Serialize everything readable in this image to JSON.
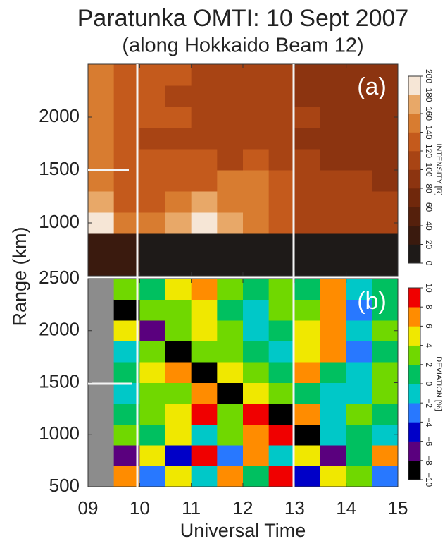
{
  "title": "Paratunka OMTI: 10 Sept 2007",
  "subtitle": "(along Hokkaido Beam 12)",
  "x_label": "Universal Time",
  "y_label": "Range (km)",
  "chart_data": [
    {
      "type": "heatmap",
      "panel_label": "(a)",
      "x": [
        9.25,
        9.75,
        10.25,
        10.75,
        11.25,
        11.75,
        12.25,
        12.75,
        13.25,
        13.75,
        14.25,
        14.75
      ],
      "y": [
        600,
        800,
        1000,
        1200,
        1400,
        1600,
        1800,
        2000,
        2200,
        2400
      ],
      "values": [
        [
          20,
          20,
          15,
          15,
          15,
          15,
          15,
          15,
          15,
          15,
          15,
          15
        ],
        [
          20,
          20,
          15,
          15,
          15,
          15,
          15,
          15,
          15,
          15,
          15,
          15
        ],
        [
          180,
          140,
          140,
          170,
          190,
          170,
          140,
          120,
          110,
          110,
          100,
          100
        ],
        [
          160,
          130,
          130,
          150,
          160,
          150,
          140,
          130,
          110,
          100,
          100,
          100
        ],
        [
          140,
          120,
          120,
          130,
          130,
          140,
          150,
          130,
          110,
          100,
          100,
          90
        ],
        [
          140,
          120,
          120,
          120,
          120,
          110,
          120,
          110,
          100,
          90,
          90,
          90
        ],
        [
          140,
          120,
          110,
          110,
          100,
          100,
          100,
          100,
          90,
          90,
          90,
          80
        ],
        [
          150,
          130,
          120,
          120,
          110,
          110,
          100,
          100,
          100,
          90,
          90,
          80
        ],
        [
          150,
          130,
          120,
          110,
          110,
          110,
          100,
          100,
          90,
          90,
          80,
          80
        ],
        [
          150,
          130,
          130,
          120,
          110,
          110,
          100,
          100,
          90,
          90,
          80,
          80
        ]
      ],
      "xlim": [
        9,
        15
      ],
      "xticks": [
        9,
        10,
        11,
        12,
        13,
        14,
        15
      ],
      "ylim": [
        500,
        2500
      ],
      "yticks": [
        1000,
        1500,
        2000
      ],
      "colorbar": {
        "label": "INTENSITY [R]",
        "lim": [
          0,
          200
        ],
        "ticks": [
          0,
          20,
          40,
          60,
          80,
          100,
          120,
          140,
          160,
          180,
          200
        ],
        "colors": [
          "#1e1a18",
          "#3a1a0e",
          "#55200c",
          "#70280c",
          "#8c3410",
          "#a84414",
          "#c45a1c",
          "#d87c30",
          "#e8a868",
          "#f6e6d6"
        ]
      }
    },
    {
      "type": "heatmap",
      "panel_label": "(b)",
      "x": [
        9.25,
        9.75,
        10.25,
        10.75,
        11.25,
        11.75,
        12.25,
        12.75,
        13.25,
        13.75,
        14.25,
        14.75
      ],
      "y": [
        600,
        800,
        1000,
        1200,
        1400,
        1600,
        1800,
        2000,
        2200,
        2400
      ],
      "values": [
        [
          null,
          6,
          -4,
          4,
          -2,
          6,
          0,
          8,
          -6,
          4,
          2,
          -4
        ],
        [
          null,
          -8,
          4,
          -6,
          8,
          -4,
          6,
          -2,
          4,
          -8,
          0,
          6
        ],
        [
          null,
          2,
          0,
          4,
          -2,
          2,
          6,
          8,
          -10,
          -2,
          0,
          -2
        ],
        [
          null,
          0,
          2,
          4,
          8,
          2,
          8,
          -10,
          6,
          -2,
          2,
          0
        ],
        [
          null,
          -2,
          2,
          2,
          6,
          -10,
          4,
          2,
          0,
          -2,
          -2,
          2
        ],
        [
          null,
          0,
          4,
          6,
          -10,
          4,
          2,
          0,
          6,
          0,
          -2,
          2
        ],
        [
          null,
          -2,
          2,
          -10,
          2,
          2,
          0,
          -2,
          4,
          6,
          -4,
          0
        ],
        [
          null,
          4,
          -8,
          2,
          4,
          2,
          -2,
          0,
          4,
          6,
          -2,
          2
        ],
        [
          null,
          -10,
          2,
          2,
          4,
          0,
          -2,
          2,
          2,
          6,
          -4,
          0
        ],
        [
          null,
          2,
          0,
          4,
          6,
          2,
          0,
          2,
          0,
          6,
          -2,
          0
        ]
      ],
      "xlim": [
        9,
        15
      ],
      "xticks": [
        {
          "value": 9,
          "label": "09"
        },
        10,
        11,
        12,
        13,
        14,
        15
      ],
      "ylim": [
        500,
        2500
      ],
      "yticks": [
        500,
        1000,
        1500,
        2000,
        2500
      ],
      "colorbar": {
        "label": "DEVIATION [%]",
        "lim": [
          -10,
          10
        ],
        "ticks": [
          {
            "value": -10,
            "label": "−10"
          },
          {
            "value": -8,
            "label": "−8"
          },
          {
            "value": -6,
            "label": "−6"
          },
          {
            "value": -4,
            "label": "−4"
          },
          {
            "value": -2,
            "label": "−2"
          },
          0,
          2,
          4,
          6,
          8,
          10
        ],
        "colors": [
          "#000000",
          "#5a007e",
          "#0000c8",
          "#2878ff",
          "#00c8c8",
          "#00c060",
          "#70d800",
          "#f0e800",
          "#ff8c00",
          "#f00000"
        ]
      }
    }
  ]
}
